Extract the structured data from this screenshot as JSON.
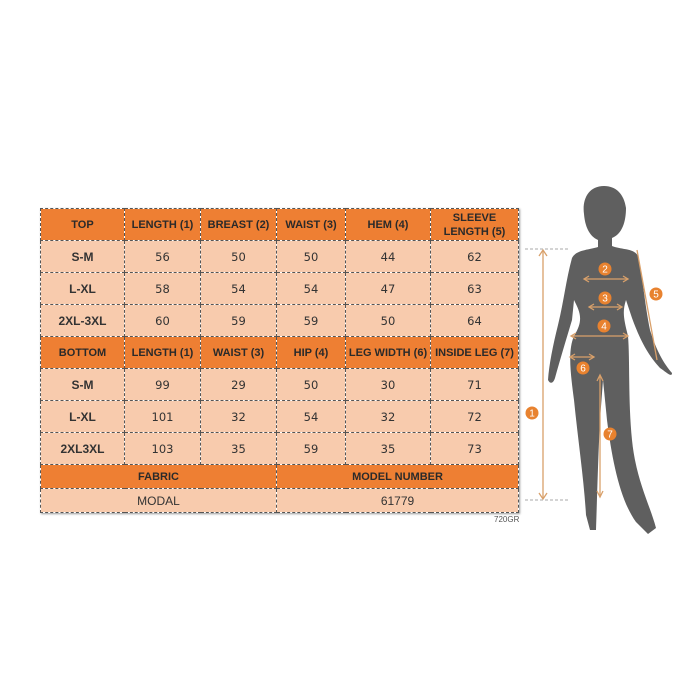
{
  "top_table": {
    "headers": [
      "TOP",
      "LENGTH (1)",
      "BREAST (2)",
      "WAIST (3)",
      "HEM (4)",
      "SLEEVE LENGTH (5)"
    ],
    "rows": [
      [
        "S-M",
        "56",
        "50",
        "50",
        "44",
        "62"
      ],
      [
        "L-XL",
        "58",
        "54",
        "54",
        "47",
        "63"
      ],
      [
        "2XL-3XL",
        "60",
        "59",
        "59",
        "50",
        "64"
      ]
    ]
  },
  "bottom_table": {
    "headers": [
      "BOTTOM",
      "LENGTH (1)",
      "WAIST (3)",
      "HIP (4)",
      "LEG WIDTH (6)",
      "INSIDE LEG (7)"
    ],
    "rows": [
      [
        "S-M",
        "99",
        "29",
        "50",
        "30",
        "71"
      ],
      [
        "L-XL",
        "101",
        "32",
        "54",
        "32",
        "72"
      ],
      [
        "2XL3XL",
        "103",
        "35",
        "59",
        "35",
        "73"
      ]
    ]
  },
  "info": {
    "fabric_label": "FABRIC",
    "model_label": "MODEL NUMBER",
    "fabric": "MODAL",
    "model": "61779"
  },
  "code": "720GR",
  "figure": {
    "markers": [
      "1",
      "2",
      "3",
      "4",
      "5",
      "6",
      "7"
    ]
  },
  "colors": {
    "header": "#ee7f33",
    "cell": "#f8cbad",
    "silhouette": "#5f5f5f",
    "marker": "#e8822f",
    "arrow": "#d9a06a"
  }
}
